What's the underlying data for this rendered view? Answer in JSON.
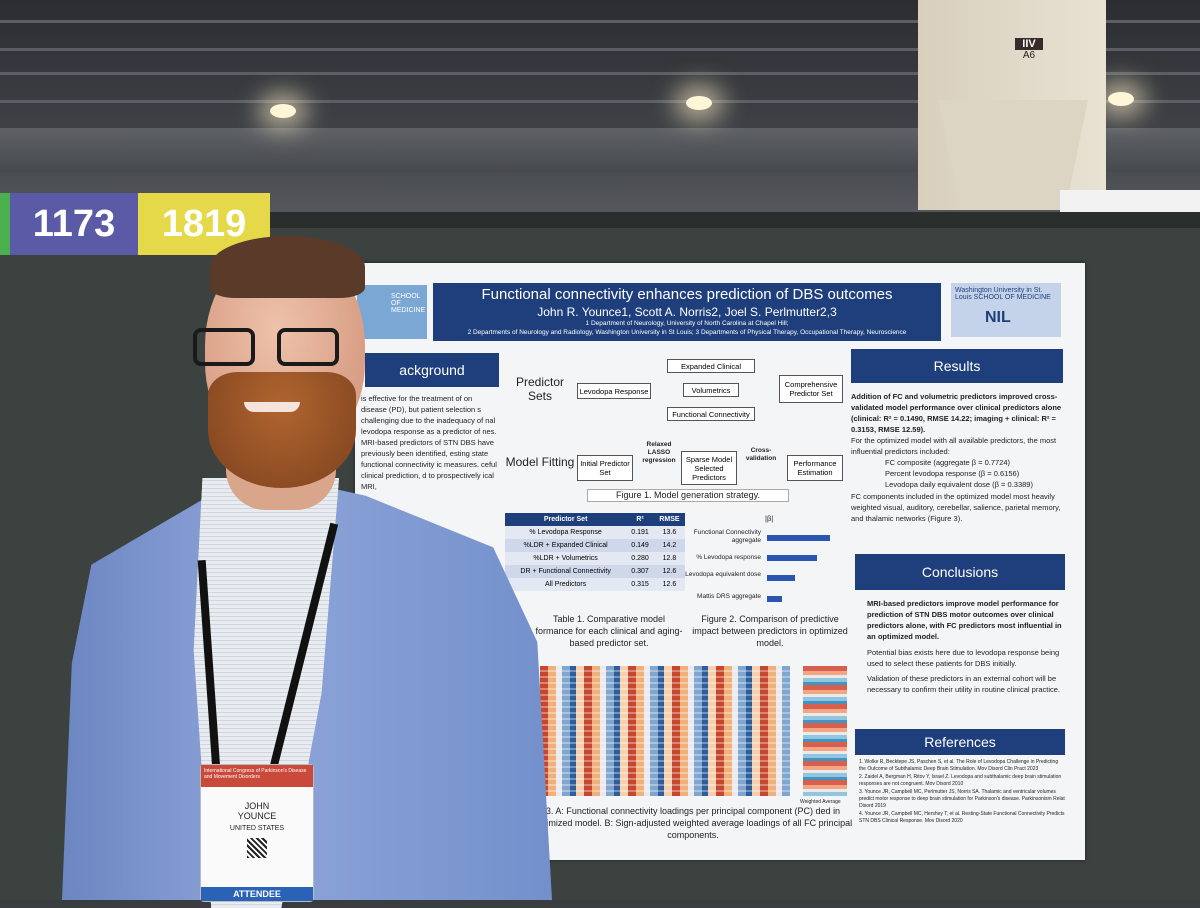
{
  "booth_numbers": [
    "1173",
    "1819"
  ],
  "hall_sign": {
    "top": "IIV",
    "bottom": "A6"
  },
  "poster": {
    "title": "Functional connectivity enhances prediction of DBS outcomes",
    "authors": "John R. Younce1, Scott A. Norris2, Joel S. Perlmutter2,3",
    "affil1": "1 Department of Neurology, University of North Carolina at Chapel Hill;",
    "affil2": "2 Departments of Neurology and Radiology, Washington University in St Louis; 3 Departments of Physical Therapy, Occupational Therapy, Neuroscience",
    "left_logo": "SCHOOL OF MEDICINE",
    "right_logo": "Washington University in St. Louis SCHOOL OF MEDICINE",
    "right_logo_nil": "NIL",
    "background_header": "ackground",
    "background_text": "is effective for the treatment of on disease (PD), but patient selection s challenging due to the inadequacy of nal levodopa response as a predictor of nes. MRI-based predictors of STN DBS have previously been identified, esting state functional connectivity ic measures. ceful clinical prediction, d to prospectively ical MRI,",
    "predictor_sets_label": "Predictor Sets",
    "model_fitting_label": "Model Fitting",
    "boxes": {
      "levodopa": "Levodopa Response",
      "expanded": "Expanded Clinical",
      "volumetrics": "Volumetrics",
      "fc": "Functional Connectivity",
      "comprehensive": "Comprehensive Predictor Set",
      "initial": "Initial Predictor Set",
      "sparse": "Sparse Model Selected Predictors",
      "performance": "Performance Estimation",
      "lasso": "Relaxed LASSO regression",
      "cv": "Cross-validation"
    },
    "figure1_caption": "Figure 1. Model generation strategy.",
    "table": {
      "headers": [
        "Predictor Set",
        "R²",
        "RMSE"
      ],
      "rows": [
        [
          "% Levodopa Response",
          "0.191",
          "13.6"
        ],
        [
          "%LDR + Expanded Clinical",
          "0.149",
          "14.2"
        ],
        [
          "%LDR + Volumetrics",
          "0.280",
          "12.8"
        ],
        [
          "DR + Functional Connectivity",
          "0.307",
          "12.6"
        ],
        [
          "All Predictors",
          "0.315",
          "12.6"
        ]
      ]
    },
    "table_caption": "Table 1. Comparative model formance for each clinical and aging-based predictor set.",
    "fig2_axis": "|β|",
    "fig2_labels": [
      "Functional Connectivity aggregate",
      "% Levodopa response",
      "Levodopa equivalent dose",
      "Mattis DRS aggregate"
    ],
    "fig2_values": [
      0.7724,
      0.6156,
      0.3389,
      0.18
    ],
    "figure2_caption": "Figure 2. Comparison of predictive impact between predictors in optimized model.",
    "figure3_caption": "3. A: Functional connectivity loadings per principal component (PC) ded in optimized model. B: Sign-adjusted weighted average loadings of all FC principal components.",
    "heatmap_xlabel": "Weighted Average",
    "results_header": "Results",
    "results_text_1": "Addition of FC and volumetric predictors improved cross-validated model performance over clinical predictors alone (clinical: R² = 0.1490, RMSE 14.22; imaging + clinical: R² = 0.3153, RMSE 12.59).",
    "results_text_2": "For the optimized model with all available predictors, the most influential predictors included:",
    "results_bullets": [
      "FC composite (aggregate β = 0.7724)",
      "Percent levodopa response (β = 0.6156)",
      "Levodopa daily equivalent dose (β = 0.3389)"
    ],
    "results_text_3": "FC components included in the optimized model most heavily weighted visual, auditory, cerebellar, salience, parietal memory, and thalamic networks (Figure 3).",
    "conclusions_header": "Conclusions",
    "conclusions_1": "MRI-based predictors improve model performance for prediction of STN DBS motor outcomes over clinical predictors alone, with FC predictors most influential in an optimized model.",
    "conclusions_2": "Potential bias exists here due to levodopa response being used to select these patients for DBS initially.",
    "conclusions_3": "Validation of these predictors in an external cohort will be necessary to confirm their utility in routine clinical practice.",
    "references_header": "References",
    "references": [
      "1. Wolke R, Becktepe JS, Paschen S, et al. The Role of Levodopa Challenge in Predicting the Outcome of Subthalamic Deep Brain Stimulation. Mov Disord Clin Pract 2023",
      "2. Zaidel A, Bergman H, Ritov Y, Israel Z. Levodopa and subthalamic deep brain stimulation responses are not congruent. Mov Disord 2010",
      "3. Younce JR, Campbell MC, Perlmutter JS, Norris SA. Thalamic and ventricular volumes predict motor response to deep brain stimulation for Parkinson's disease. Parkinsonism Relat Disord 2019",
      "4. Younce JR, Campbell MC, Hershey T, et al. Resting-State Functional Connectivity Predicts STN DBS Clinical Response. Mov Disord 2020"
    ]
  },
  "badge": {
    "header": "International Congress of Parkinson's Disease and Movement Disorders",
    "first": "JOHN",
    "last": "YOUNCE",
    "country": "UNITED STATES",
    "type": "ATTENDEE"
  }
}
